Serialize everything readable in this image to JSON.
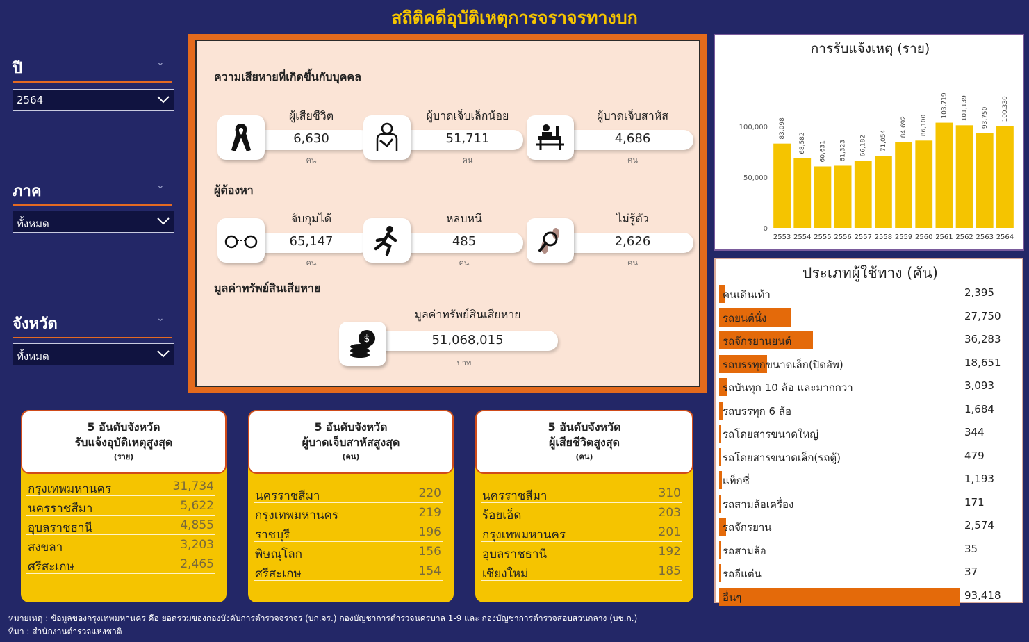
{
  "title": "สถิติคดีอุบัติเหตุการจราจรทางบก",
  "slicers": {
    "year": {
      "label": "ปี",
      "value": "2564"
    },
    "region": {
      "label": "ภาค",
      "value": "ทั้งหมด"
    },
    "province": {
      "label": "จังหวัด",
      "value": "ทั้งหมด"
    }
  },
  "casualties": {
    "heading": "ความเสียหายที่เกิดขึ้นกับบุคคล",
    "items": [
      {
        "label": "ผู้เสียชีวิต",
        "value": "6,630",
        "unit": "คน",
        "icon": "black-ribbon-icon"
      },
      {
        "label": "ผู้บาดเจ็บเล็กน้อย",
        "value": "51,711",
        "unit": "คน",
        "icon": "injured-person-icon"
      },
      {
        "label": "ผู้บาดเจ็บสาหัส",
        "value": "4,686",
        "unit": "คน",
        "icon": "hospital-bed-icon"
      }
    ]
  },
  "suspects": {
    "heading": "ผู้ต้องหา",
    "items": [
      {
        "label": "จับกุมได้",
        "value": "65,147",
        "unit": "คน",
        "icon": "handcuffs-icon"
      },
      {
        "label": "หลบหนี",
        "value": "485",
        "unit": "คน",
        "icon": "running-person-icon"
      },
      {
        "label": "ไม่รู้ตัว",
        "value": "2,626",
        "unit": "คน",
        "icon": "footprint-search-icon"
      }
    ]
  },
  "property": {
    "heading": "มูลค่าทรัพย์สินเสียหาย",
    "label": "มูลค่าทรัพย์สินเสียหาย",
    "value": "51,068,015",
    "unit": "บาท",
    "icon": "coins-icon"
  },
  "chart_data": {
    "type": "bar",
    "title": "การรับแจ้งเหตุ (ราย)",
    "categories": [
      "2553",
      "2554",
      "2555",
      "2556",
      "2557",
      "2558",
      "2559",
      "2560",
      "2561",
      "2562",
      "2563",
      "2564"
    ],
    "values": [
      83098,
      68582,
      60631,
      61323,
      66182,
      71054,
      84692,
      86100,
      103719,
      101139,
      93750,
      100330
    ],
    "labels": [
      "83,098",
      "68,582",
      "60,631",
      "61,323",
      "66,182",
      "71,054",
      "84,692",
      "86,100",
      "103,719",
      "101,139",
      "93,750",
      "100,330"
    ],
    "yticks": [
      "0",
      "50,000",
      "100,000"
    ],
    "ylim": [
      0,
      100000
    ],
    "color": "#f5c400"
  },
  "road_users": {
    "title": "ประเภทผู้ใช้ทาง (คัน)",
    "bar_color": "#e46a0a",
    "items": [
      {
        "name": "คนเดินเท้า",
        "value": 2395,
        "display": "2,395"
      },
      {
        "name": "รถยนต์นั่ง",
        "value": 27750,
        "display": "27,750"
      },
      {
        "name": "รถจักรยานยนต์",
        "value": 36283,
        "display": "36,283"
      },
      {
        "name": "รถบรรทุกขนาดเล็ก(ปิดอัพ)",
        "value": 18651,
        "display": "18,651"
      },
      {
        "name": "รถบันทุก 10 ล้อ และมากกว่า",
        "value": 3093,
        "display": "3,093"
      },
      {
        "name": "รถบรรทุก 6 ล้อ",
        "value": 1684,
        "display": "1,684"
      },
      {
        "name": "รถโดยสารขนาดใหญ่",
        "value": 344,
        "display": "344"
      },
      {
        "name": "รถโดยสารขนาดเล็ก(รถตู้)",
        "value": 479,
        "display": "479"
      },
      {
        "name": "แท็กซี่",
        "value": 1193,
        "display": "1,193"
      },
      {
        "name": "รถสามล้อเครื่อง",
        "value": 171,
        "display": "171"
      },
      {
        "name": "รถจักรยาน",
        "value": 2574,
        "display": "2,574"
      },
      {
        "name": "รถสามล้อ",
        "value": 35,
        "display": "35"
      },
      {
        "name": "รถอีแต๋น",
        "value": 37,
        "display": "37"
      },
      {
        "name": "อื่นๆ",
        "value": 93418,
        "display": "93,418"
      }
    ]
  },
  "top5": [
    {
      "title_line1": "5 อันดับจังหวัด",
      "title_line2": "รับแจ้งอุบัติเหตุสูงสุด",
      "unit": "(ราย)",
      "rows": [
        {
          "name": "กรุงเทพมหานคร",
          "value": "31,734"
        },
        {
          "name": "นครราชสีมา",
          "value": "5,622"
        },
        {
          "name": "อุบลราชธานี",
          "value": "4,855"
        },
        {
          "name": "สงขลา",
          "value": "3,203"
        },
        {
          "name": "ศรีสะเกษ",
          "value": "2,465"
        }
      ]
    },
    {
      "title_line1": "5 อันดับจังหวัด",
      "title_line2": "ผู้บาดเจ็บสาหัสสูงสุด",
      "unit": "(คน)",
      "rows": [
        {
          "name": "นครราชสีมา",
          "value": "220"
        },
        {
          "name": "กรุงเทพมหานคร",
          "value": "219"
        },
        {
          "name": "ราชบุรี",
          "value": "196"
        },
        {
          "name": "พิษณุโลก",
          "value": "156"
        },
        {
          "name": "ศรีสะเกษ",
          "value": "154"
        }
      ]
    },
    {
      "title_line1": "5 อันดับจังหวัด",
      "title_line2": "ผู้เสียชีวิตสูงสุด",
      "unit": "(คน)",
      "rows": [
        {
          "name": "นครราชสีมา",
          "value": "310"
        },
        {
          "name": "ร้อยเอ็ด",
          "value": "203"
        },
        {
          "name": "กรุงเทพมหานคร",
          "value": "201"
        },
        {
          "name": "อุบลราชธานี",
          "value": "192"
        },
        {
          "name": "เชียงใหม่",
          "value": "185"
        }
      ]
    }
  ],
  "notes": {
    "remark": "หมายเหตุ :  ข้อมูลของกรุงเทพมหานคร คือ ยอดรวมของกองบังคับการตำรวจจราจร (บก.จร.)   กองบัญชาการตำรวจนครบาล 1-9 และ กองบัญชาการตำรวจสอบสวนกลาง (บช.ก.)",
    "source": "ที่มา :  สำนักงานตำรวจแห่งชาติ"
  }
}
